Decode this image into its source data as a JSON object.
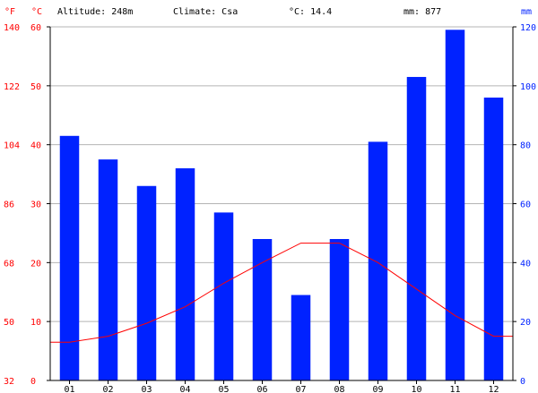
{
  "header": {
    "unit_f": "°F",
    "unit_c": "°C",
    "altitude": "Altitude: 248m",
    "climate": "Climate: Csa",
    "temp": "°C: 14.4",
    "precip": "mm: 877",
    "unit_mm": "mm"
  },
  "colors": {
    "precip_bar": "#0022ff",
    "temp_line": "#ff0000",
    "grid": "#b4b4b4"
  },
  "chart_data": {
    "type": "bar",
    "categories": [
      "01",
      "02",
      "03",
      "04",
      "05",
      "06",
      "07",
      "08",
      "09",
      "10",
      "11",
      "12"
    ],
    "series": [
      {
        "unit": "mm",
        "axis": "right",
        "chart": "bar",
        "values": [
          83,
          75,
          66,
          72,
          57,
          48,
          29,
          48,
          81,
          103,
          119,
          96
        ]
      },
      {
        "unit": "°C",
        "axis": "left",
        "chart": "line",
        "values": [
          6.5,
          7.5,
          9.7,
          12.5,
          16.5,
          20.0,
          23.3,
          23.3,
          20.0,
          15.5,
          11.0,
          7.5
        ]
      }
    ],
    "left_axis_c": {
      "ticks": [
        0,
        10,
        20,
        30,
        40,
        50,
        60
      ],
      "range": [
        0,
        60
      ]
    },
    "left_axis_f": {
      "ticks": [
        32,
        50,
        68,
        86,
        104,
        122,
        140
      ],
      "range": [
        32,
        140
      ]
    },
    "right_axis_mm": {
      "ticks": [
        0,
        20,
        40,
        60,
        80,
        100,
        120
      ],
      "range": [
        0,
        120
      ]
    },
    "grid": true
  }
}
